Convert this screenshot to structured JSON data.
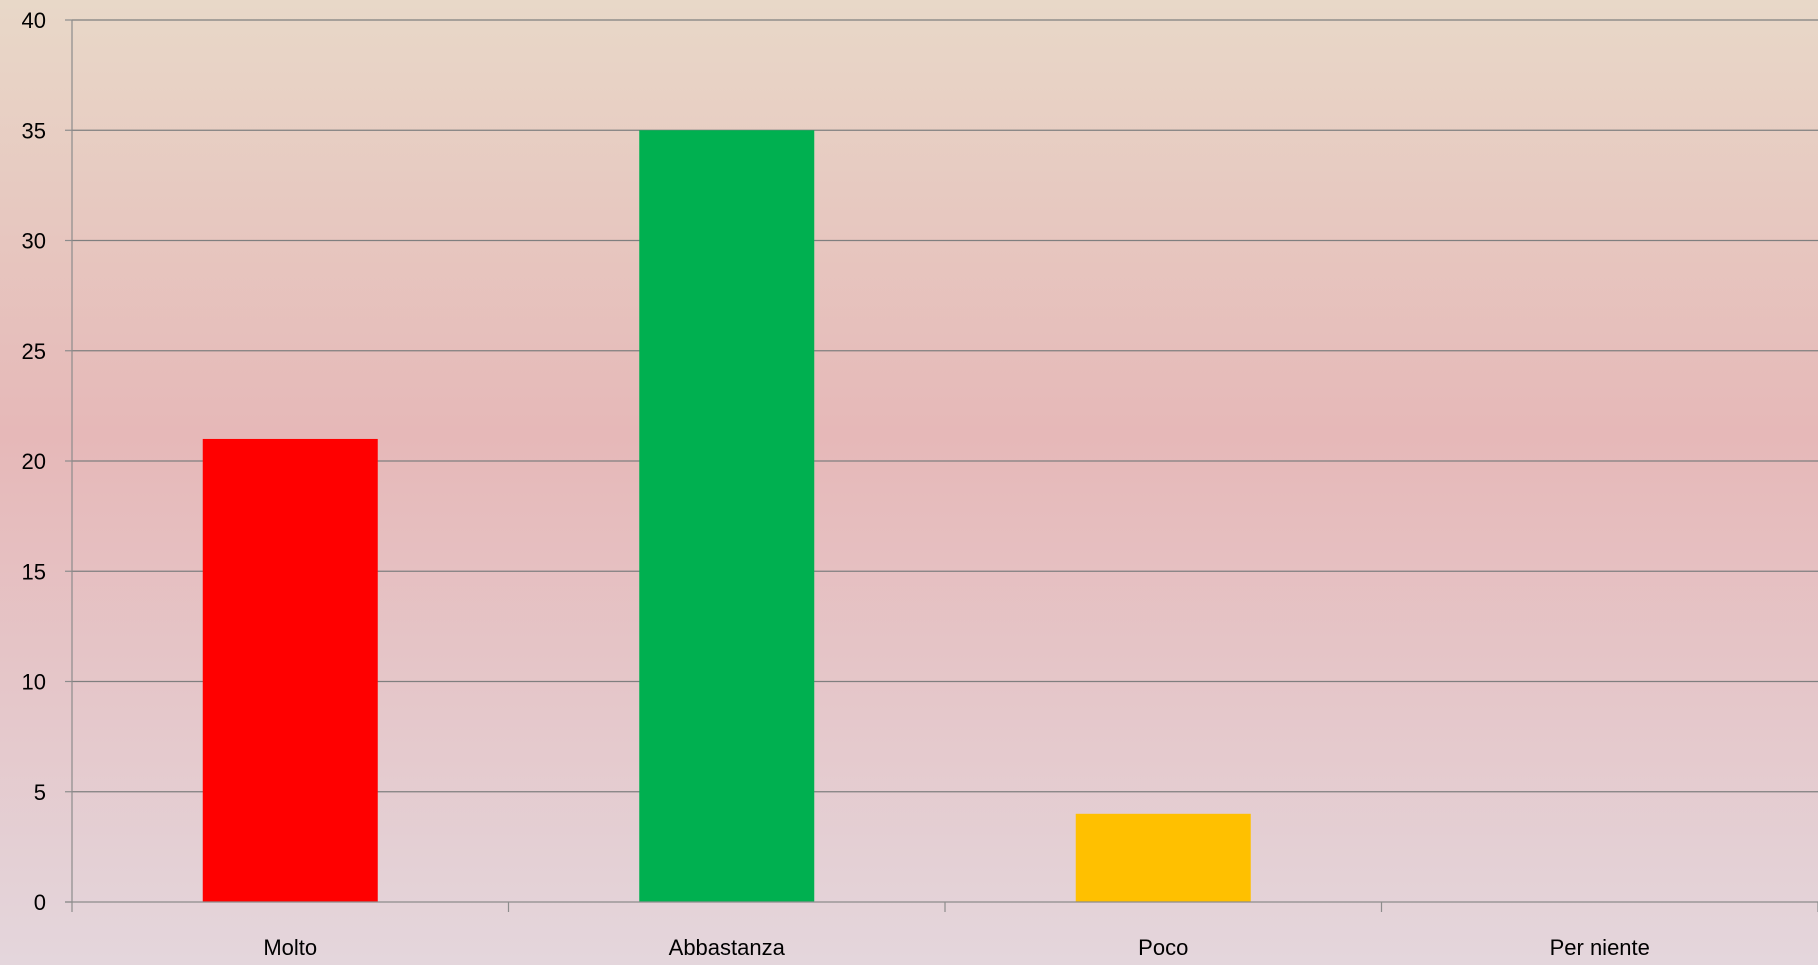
{
  "chart_data": {
    "type": "bar",
    "title": "",
    "xlabel": "",
    "ylabel": "",
    "categories": [
      "Molto",
      "Abbastanza",
      "Poco",
      "Per niente"
    ],
    "values": [
      21,
      35,
      4,
      0
    ],
    "bar_colors": [
      "#ff0000",
      "#00b050",
      "#ffc000",
      "#ffc000"
    ],
    "ylim": [
      0,
      40
    ],
    "yticks": [
      "0",
      "5",
      "10",
      "15",
      "20",
      "25",
      "30",
      "35",
      "40"
    ],
    "grid": true,
    "legend": "none"
  },
  "colors": {
    "gridline": "#7f7f7f",
    "axis": "#8c8c8c"
  }
}
